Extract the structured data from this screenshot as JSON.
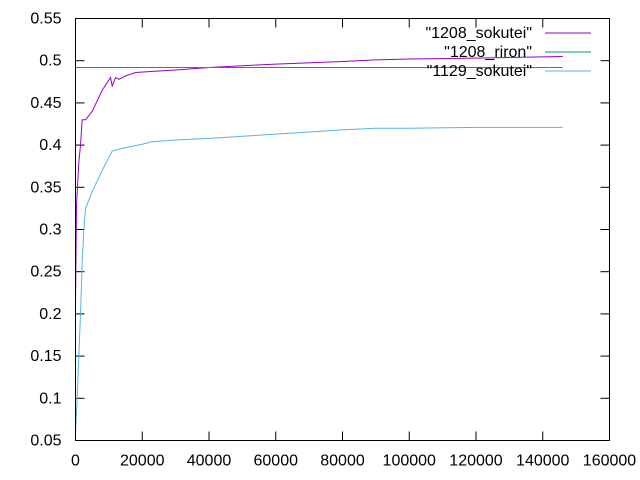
{
  "chart_data": {
    "type": "line",
    "title": "",
    "xlabel": "",
    "ylabel": "",
    "xlim": [
      0,
      160000
    ],
    "ylim": [
      0.05,
      0.55
    ],
    "xticks": [
      0,
      20000,
      40000,
      60000,
      80000,
      100000,
      120000,
      140000,
      160000
    ],
    "yticks": [
      0.05,
      0.1,
      0.15,
      0.2,
      0.25,
      0.3,
      0.35,
      0.4,
      0.45,
      0.5,
      0.55
    ],
    "xtick_labels": [
      "0",
      "20000",
      "40000",
      "60000",
      "80000",
      "100000",
      "120000",
      "140000",
      "160000"
    ],
    "ytick_labels": [
      "0.05",
      "0.1",
      "0.15",
      "0.2",
      "0.25",
      "0.3",
      "0.35",
      "0.4",
      "0.45",
      "0.5",
      "0.55"
    ],
    "grid": false,
    "legend_position": "top-right",
    "series": [
      {
        "name": "\"1208_sokutei\"",
        "color": "#9400d3",
        "x": [
          0,
          300,
          600,
          1000,
          1500,
          2000,
          3000,
          5000,
          8000,
          10500,
          11000,
          12000,
          13000,
          15000,
          18000,
          22000,
          30000,
          40000,
          50000,
          60000,
          80000,
          90000,
          100000,
          120000,
          146000
        ],
        "y": [
          0.21,
          0.33,
          0.35,
          0.38,
          0.4,
          0.43,
          0.43,
          0.44,
          0.465,
          0.48,
          0.47,
          0.48,
          0.478,
          0.482,
          0.486,
          0.487,
          0.489,
          0.492,
          0.494,
          0.496,
          0.499,
          0.501,
          0.502,
          0.503,
          0.505
        ]
      },
      {
        "name": "\"1208_riron\"",
        "color": "#009e73",
        "x": [
          0,
          146000
        ],
        "y": [
          0.492,
          0.492
        ]
      },
      {
        "name": "\"1129_sokutei\"",
        "color": "#56b4e9",
        "x": [
          0,
          500,
          1000,
          1500,
          2000,
          2500,
          3000,
          5000,
          8000,
          11000,
          15000,
          20000,
          23000,
          30000,
          40000,
          60000,
          80000,
          90000,
          100000,
          120000,
          146000
        ],
        "y": [
          0.06,
          0.1,
          0.15,
          0.2,
          0.26,
          0.3,
          0.325,
          0.345,
          0.37,
          0.393,
          0.397,
          0.401,
          0.404,
          0.406,
          0.408,
          0.413,
          0.418,
          0.42,
          0.42,
          0.421,
          0.421
        ]
      }
    ]
  }
}
